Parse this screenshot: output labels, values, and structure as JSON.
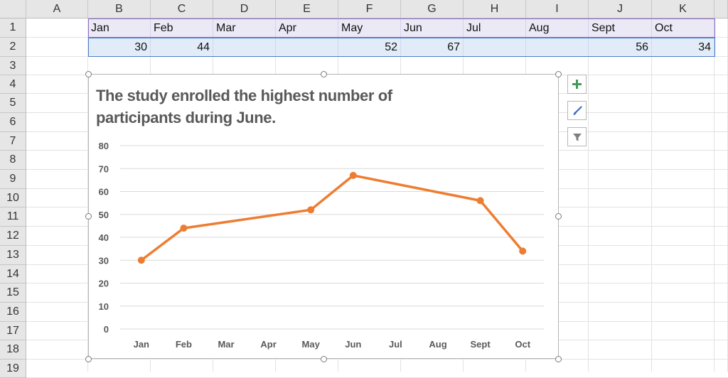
{
  "columns": [
    "A",
    "B",
    "C",
    "D",
    "E",
    "F",
    "G",
    "H",
    "I",
    "J",
    "K"
  ],
  "rows": [
    "1",
    "2",
    "3",
    "4",
    "5",
    "6",
    "7",
    "8",
    "9",
    "10",
    "11",
    "12",
    "13",
    "14",
    "15",
    "16",
    "17",
    "18",
    "19"
  ],
  "months": [
    "Jan",
    "Feb",
    "Mar",
    "Apr",
    "May",
    "Jun",
    "Jul",
    "Aug",
    "Sept",
    "Oct"
  ],
  "values": [
    "30",
    "44",
    "",
    "",
    "52",
    "67",
    "",
    "",
    "56",
    "34"
  ],
  "chart_data": {
    "type": "line",
    "title": "The study enrolled the highest number of participants during June.",
    "categories": [
      "Jan",
      "Feb",
      "Mar",
      "Apr",
      "May",
      "Jun",
      "Jul",
      "Aug",
      "Sept",
      "Oct"
    ],
    "series": [
      {
        "values": [
          30,
          44,
          null,
          null,
          52,
          67,
          null,
          null,
          56,
          34
        ]
      }
    ],
    "yticks": [
      "0",
      "10",
      "20",
      "30",
      "40",
      "50",
      "60",
      "70",
      "80"
    ],
    "ylim": [
      0,
      80
    ],
    "grid": true,
    "line_color": "#ed7d31",
    "xlabel": "",
    "ylabel": ""
  },
  "chart_tools": {
    "add_icon": "plus-icon",
    "style_icon": "paintbrush-icon",
    "filter_icon": "filter-icon"
  }
}
